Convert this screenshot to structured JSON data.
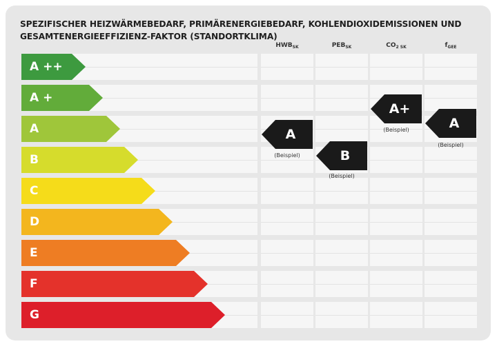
{
  "title_line1": "SPEZIFISCHER HEIZWÄRMEBEDARF, PRIMÄRENERGIEBEDARF, KOHLENDIOXIDEMISSIONEN UND",
  "title_line2": "GESAMTENERGIEEFFIZIENZ-FAKTOR (STANDORTKLIMA)",
  "columns": [
    {
      "main": "HWB",
      "sub": "SK"
    },
    {
      "main": "PEB",
      "sub": "SK"
    },
    {
      "main": "CO",
      "sub": "2 SK"
    },
    {
      "main": "f",
      "sub": "GEE"
    }
  ],
  "classes": [
    {
      "label": "A ++",
      "color": "#3d9a3f"
    },
    {
      "label": "A +",
      "color": "#62ac3a"
    },
    {
      "label": "A",
      "color": "#9fc63a"
    },
    {
      "label": "B",
      "color": "#d6dc2c"
    },
    {
      "label": "C",
      "color": "#f5dc1a"
    },
    {
      "label": "D",
      "color": "#f3b61e"
    },
    {
      "label": "E",
      "color": "#ee7d23"
    },
    {
      "label": "F",
      "color": "#e4322b"
    },
    {
      "label": "G",
      "color": "#dd1f2a"
    }
  ],
  "markers": [
    {
      "column": "HWB SK",
      "label": "A",
      "note": "(Beispiel)"
    },
    {
      "column": "PEB SK",
      "label": "B",
      "note": "(Beispiel)"
    },
    {
      "column": "CO2 SK",
      "label": "A+",
      "note": "(Beispiel)"
    },
    {
      "column": "fGEE",
      "label": "A",
      "note": "(Beispiel)"
    }
  ]
}
